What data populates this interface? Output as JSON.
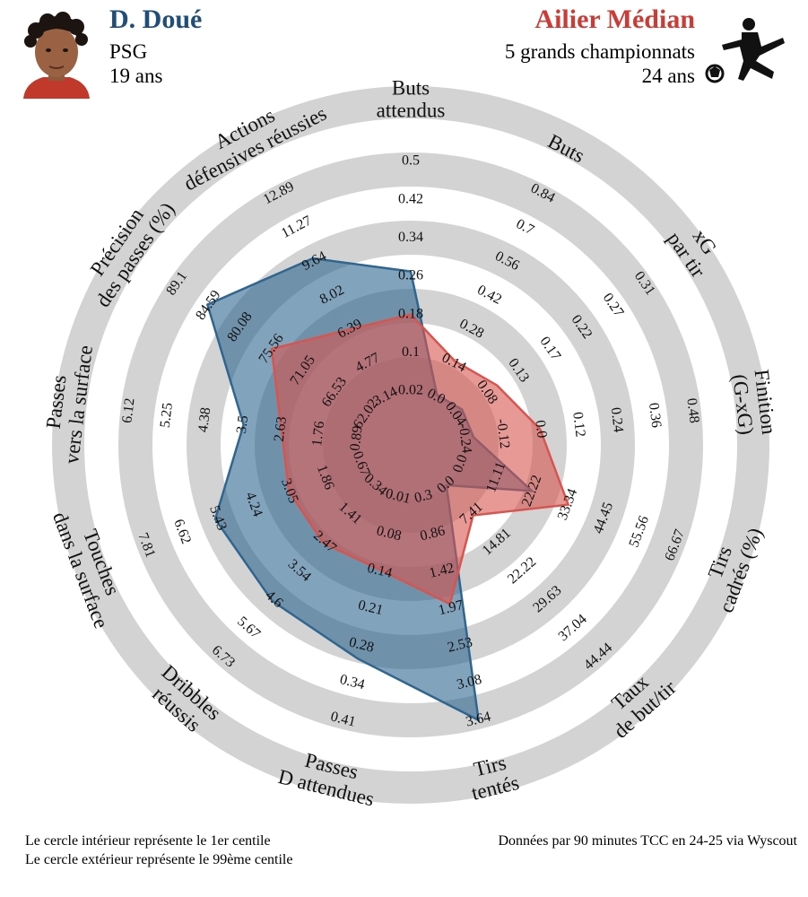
{
  "header": {
    "player_name": "D. Doué",
    "player_club": "PSG",
    "player_age": "19 ans",
    "comparison_name": "Ailier Médian",
    "comparison_scope": "5 grands championnats",
    "comparison_age": "24 ans"
  },
  "footer": {
    "legend_inner": "Le cercle intérieur représente le 1er centile",
    "legend_outer": "Le cercle extérieur représente le 99ème centile",
    "source": "Données par 90 minutes TCC en 24-25 via Wyscout"
  },
  "colors": {
    "player": "#2f6690",
    "comparison": "#d7554e",
    "player_name": "#1f4e79",
    "comparison_name": "#cd3b34",
    "ring": "#d3d3d3"
  },
  "icons": {
    "avatar": "player-portrait",
    "position": "footballer-kicking-icon"
  },
  "chart_data": {
    "type": "radar",
    "title": "",
    "axes": [
      {
        "name": "Buts\nattendus",
        "ticks": [
          "0.02",
          "0.1",
          "0.18",
          "0.26",
          "0.34",
          "0.42",
          "0.5"
        ]
      },
      {
        "name": "Buts",
        "ticks": [
          "0.0",
          "0.14",
          "0.28",
          "0.42",
          "0.56",
          "0.7",
          "0.84"
        ]
      },
      {
        "name": "xG\npar tir",
        "ticks": [
          "0.04",
          "0.08",
          "0.13",
          "0.17",
          "0.22",
          "0.27",
          "0.31"
        ]
      },
      {
        "name": "Finition\n(G-xG)",
        "ticks": [
          "-0.24",
          "-0.12",
          "0.0",
          "0.12",
          "0.24",
          "0.36",
          "0.48"
        ]
      },
      {
        "name": "Tirs\ncadrés (%)",
        "ticks": [
          "0.0",
          "11.11",
          "22.22",
          "33.34",
          "44.45",
          "55.56",
          "66.67"
        ]
      },
      {
        "name": "Taux\nde but/tir",
        "ticks": [
          "0.0",
          "7.41",
          "14.81",
          "22.22",
          "29.63",
          "37.04",
          "44.44"
        ]
      },
      {
        "name": "Tirs\ntentés",
        "ticks": [
          "0.3",
          "0.86",
          "1.42",
          "1.97",
          "2.53",
          "3.08",
          "3.64"
        ]
      },
      {
        "name": "Passes\nD attendues",
        "ticks": [
          "0.01",
          "0.08",
          "0.14",
          "0.21",
          "0.28",
          "0.34",
          "0.41"
        ]
      },
      {
        "name": "Dribbles\nréussis",
        "ticks": [
          "0.34",
          "1.41",
          "2.47",
          "3.54",
          "4.6",
          "5.67",
          "6.73"
        ]
      },
      {
        "name": "Touches\ndans la surface",
        "ticks": [
          "0.67",
          "1.86",
          "3.05",
          "4.24",
          "5.43",
          "6.62",
          "7.81"
        ]
      },
      {
        "name": "Passes\nvers la surface",
        "ticks": [
          "0.89",
          "1.76",
          "2.63",
          "3.5",
          "4.38",
          "5.25",
          "6.12"
        ]
      },
      {
        "name": "Précision\ndes passes (%)",
        "ticks": [
          "62.02",
          "66.53",
          "71.05",
          "75.56",
          "80.08",
          "84.59",
          "89.1"
        ]
      },
      {
        "name": "Actions\ndéfensives réussies",
        "ticks": [
          "3.14",
          "4.77",
          "6.39",
          "8.02",
          "9.64",
          "11.27",
          "12.89"
        ]
      }
    ],
    "range_min": [
      0.02,
      0.0,
      0.04,
      -0.24,
      0.0,
      0.0,
      0.3,
      0.01,
      0.34,
      0.67,
      0.89,
      62.02,
      3.14
    ],
    "range_max": [
      0.5,
      0.84,
      0.31,
      0.48,
      66.67,
      44.44,
      3.64,
      0.41,
      6.73,
      7.81,
      6.12,
      89.1,
      12.89
    ],
    "series": [
      {
        "name": "D. Doué",
        "values": [
          0.27,
          0.01,
          0.05,
          -0.21,
          22.0,
          0.0,
          3.64,
          0.3,
          4.65,
          5.5,
          3.5,
          84.8,
          9.8
        ]
      },
      {
        "name": "Ailier Médian",
        "values": [
          0.18,
          0.15,
          0.1,
          0.0,
          33.3,
          7.8,
          1.9,
          0.14,
          2.5,
          3.05,
          2.63,
          75.6,
          6.4
        ]
      }
    ]
  }
}
